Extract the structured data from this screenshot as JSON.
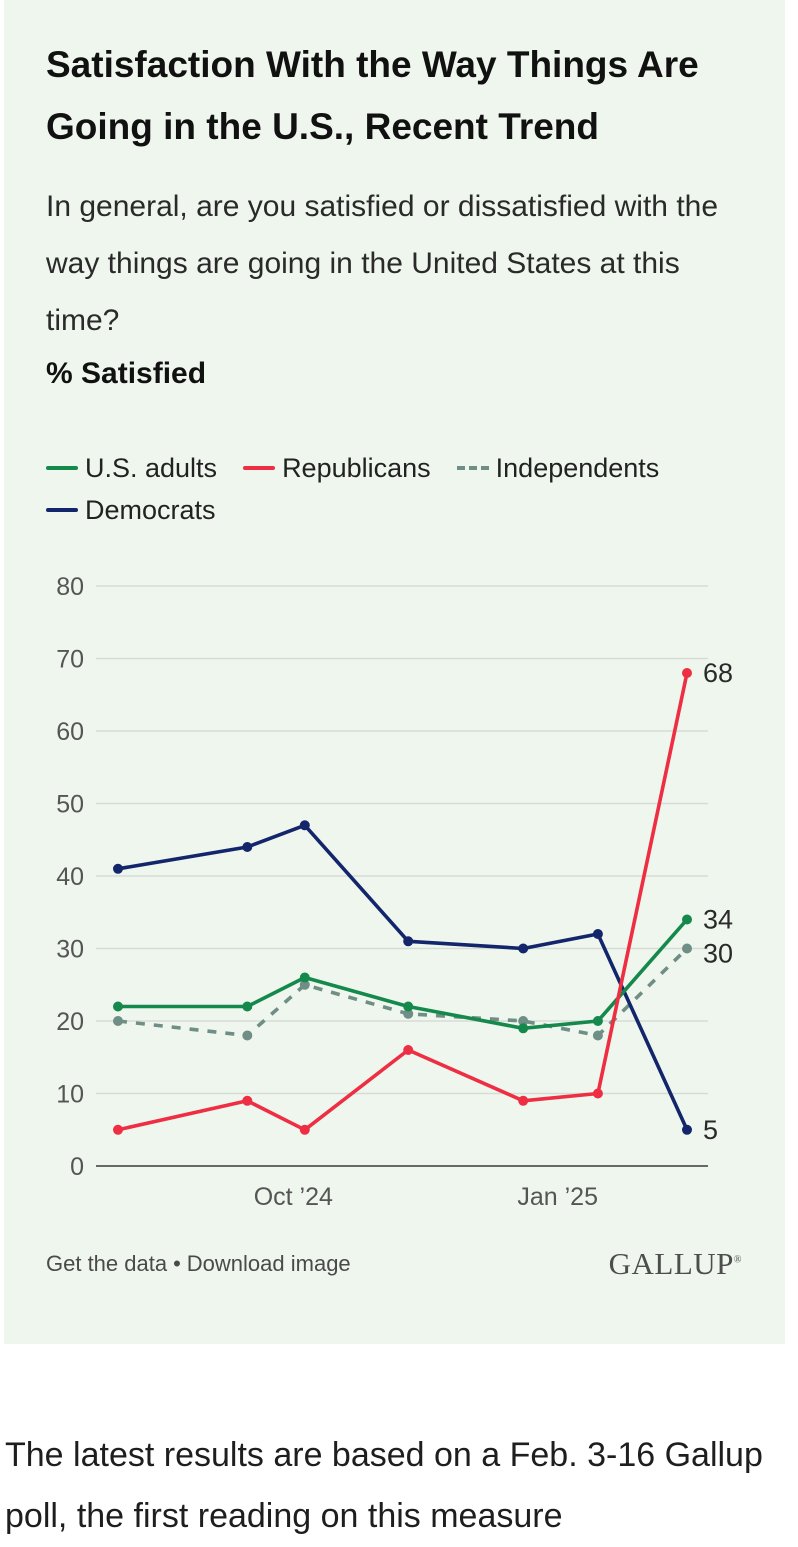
{
  "card": {
    "title": "Satisfaction With the Way Things Are Going in the U.S., Recent Trend",
    "subtitle": "In general, are you satisfied or dissatisfied with the way things are going in the United States at this time?",
    "measure": "% Satisfied",
    "legend": [
      {
        "label": "U.S. adults",
        "color": "#15884b",
        "style": "solid"
      },
      {
        "label": "Republicans",
        "color": "#ee2e43",
        "style": "solid"
      },
      {
        "label": "Independents",
        "color": "#6f8e85",
        "style": "dashed"
      },
      {
        "label": "Democrats",
        "color": "#13266b",
        "style": "solid"
      }
    ],
    "footer": {
      "get_data": "Get the data",
      "separator": "•",
      "download": "Download image",
      "brand": "GALLUP",
      "brand_mark": "®"
    }
  },
  "chart_data": {
    "type": "line",
    "title": "Satisfaction With the Way Things Are Going in the U.S., Recent Trend",
    "ylabel": "% Satisfied",
    "ylim": [
      0,
      80
    ],
    "yticks": [
      0,
      10,
      20,
      30,
      40,
      50,
      60,
      70,
      80
    ],
    "x": [
      "2024-08-01",
      "2024-09-15",
      "2024-10-05",
      "2024-11-10",
      "2024-12-20",
      "2025-01-15",
      "2025-02-15"
    ],
    "xticks": [
      {
        "date": "2024-10-01",
        "label": "Oct ’24"
      },
      {
        "date": "2025-01-01",
        "label": "Jan ’25"
      }
    ],
    "grid": true,
    "legend_position": "top",
    "series": [
      {
        "name": "U.S. adults",
        "color": "#15884b",
        "dashed": false,
        "values": [
          22,
          22,
          26,
          22,
          19,
          20,
          34
        ],
        "end_label": "34"
      },
      {
        "name": "Republicans",
        "color": "#ee2e43",
        "dashed": false,
        "values": [
          5,
          9,
          5,
          16,
          9,
          10,
          68
        ],
        "end_label": "68"
      },
      {
        "name": "Independents",
        "color": "#6f8e85",
        "dashed": true,
        "values": [
          20,
          18,
          25,
          21,
          20,
          18,
          30
        ],
        "end_label": "30"
      },
      {
        "name": "Democrats",
        "color": "#13266b",
        "dashed": false,
        "values": [
          41,
          44,
          47,
          31,
          30,
          32,
          5
        ],
        "end_label": "5"
      }
    ]
  },
  "article": {
    "text": "The latest results are based on a Feb. 3-16 Gallup poll, the first reading on this measure"
  }
}
